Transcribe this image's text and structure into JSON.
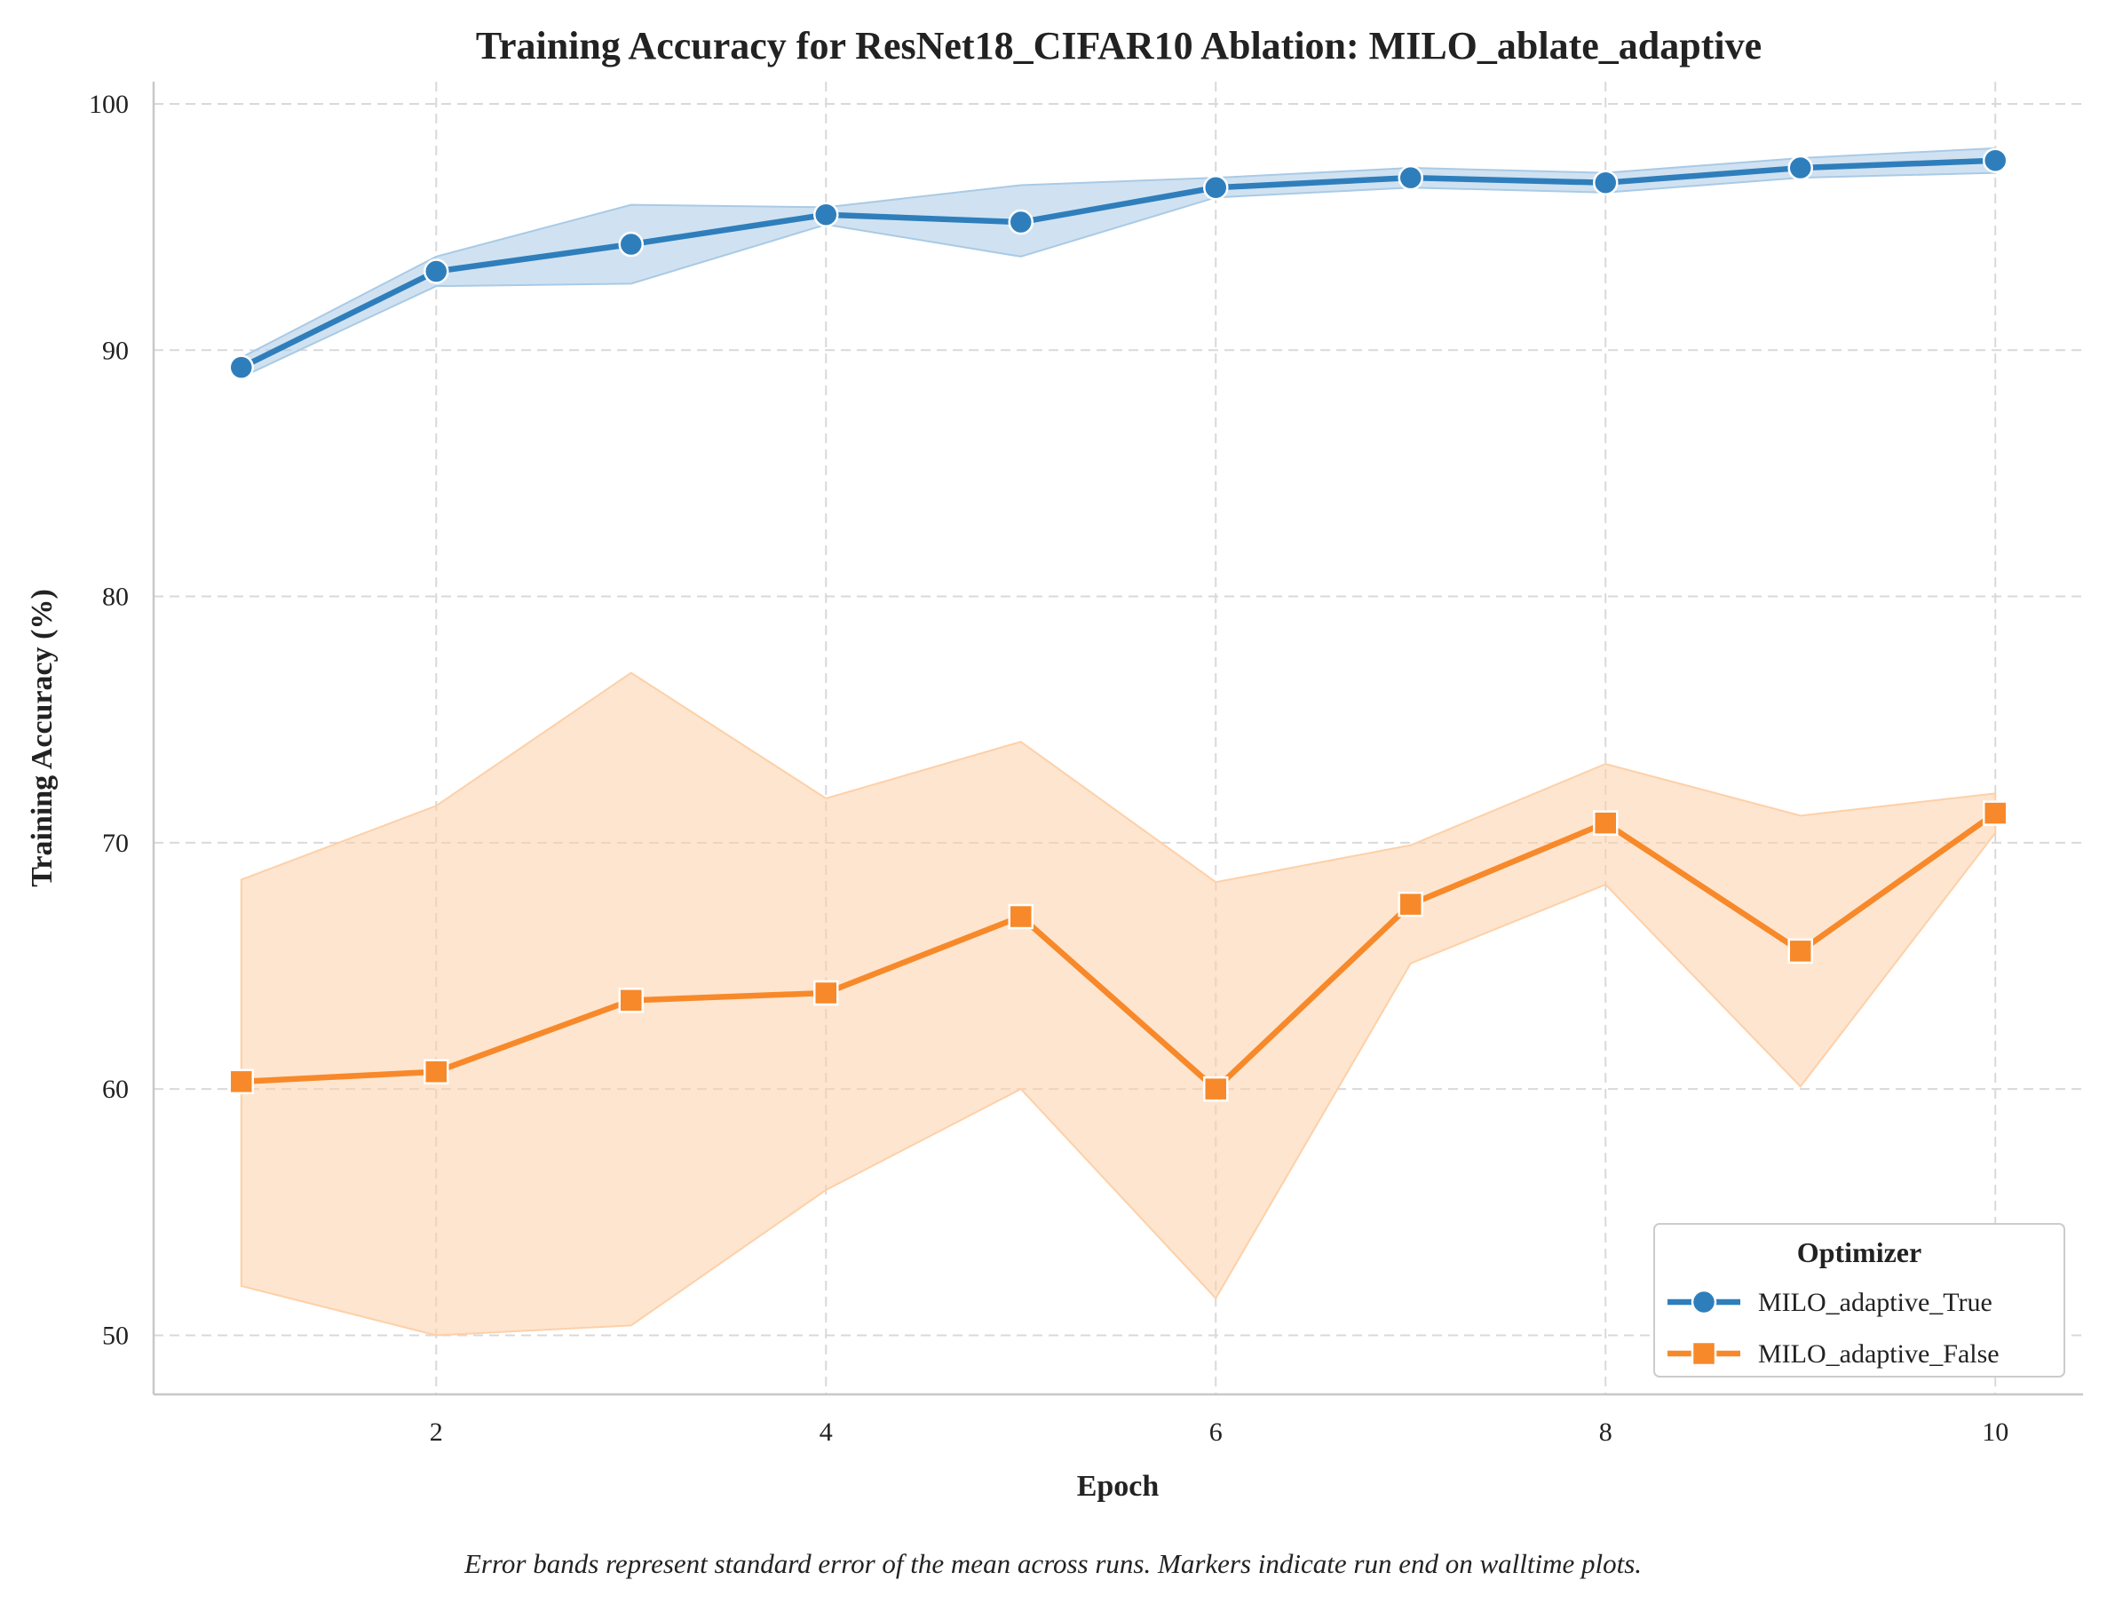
{
  "chart_data": {
    "type": "line",
    "title": "Training Accuracy for ResNet18_CIFAR10 Ablation: MILO_ablate_adaptive",
    "xlabel": "Epoch",
    "ylabel": "Training Accuracy (%)",
    "caption": "Error bands represent standard error of the mean across runs. Markers indicate run end on walltime plots.",
    "x": [
      1,
      2,
      3,
      4,
      5,
      6,
      7,
      8,
      9,
      10
    ],
    "xlim": [
      0.55,
      10.45
    ],
    "ylim": [
      47.6,
      100.9
    ],
    "xticks": [
      2,
      4,
      6,
      8,
      10
    ],
    "yticks": [
      50,
      60,
      70,
      80,
      90,
      100
    ],
    "grid": true,
    "legend": {
      "title": "Optimizer",
      "position": "bottom-right"
    },
    "series": [
      {
        "name": "MILO_adaptive_True",
        "color": "#2f7ebc",
        "band_color": "#a9cae6",
        "marker": "circle",
        "values": [
          89.3,
          93.2,
          94.3,
          95.5,
          95.2,
          96.6,
          97.0,
          96.8,
          97.4,
          97.7
        ],
        "lower": [
          88.9,
          92.6,
          92.7,
          95.1,
          93.8,
          96.2,
          96.6,
          96.4,
          97.0,
          97.2
        ],
        "upper": [
          89.7,
          93.8,
          95.9,
          95.8,
          96.7,
          97.0,
          97.4,
          97.2,
          97.8,
          98.2
        ]
      },
      {
        "name": "MILO_adaptive_False",
        "color": "#f7892a",
        "band_color": "#fdd0a8",
        "marker": "square",
        "values": [
          60.3,
          60.7,
          63.6,
          63.9,
          67.0,
          60.0,
          67.5,
          70.8,
          65.6,
          71.2
        ],
        "lower": [
          52.0,
          50.0,
          50.4,
          55.9,
          60.0,
          51.5,
          65.1,
          68.3,
          60.1,
          70.4
        ],
        "upper": [
          68.5,
          71.5,
          76.9,
          71.8,
          74.1,
          68.4,
          69.9,
          73.2,
          71.1,
          72.0
        ]
      }
    ]
  }
}
